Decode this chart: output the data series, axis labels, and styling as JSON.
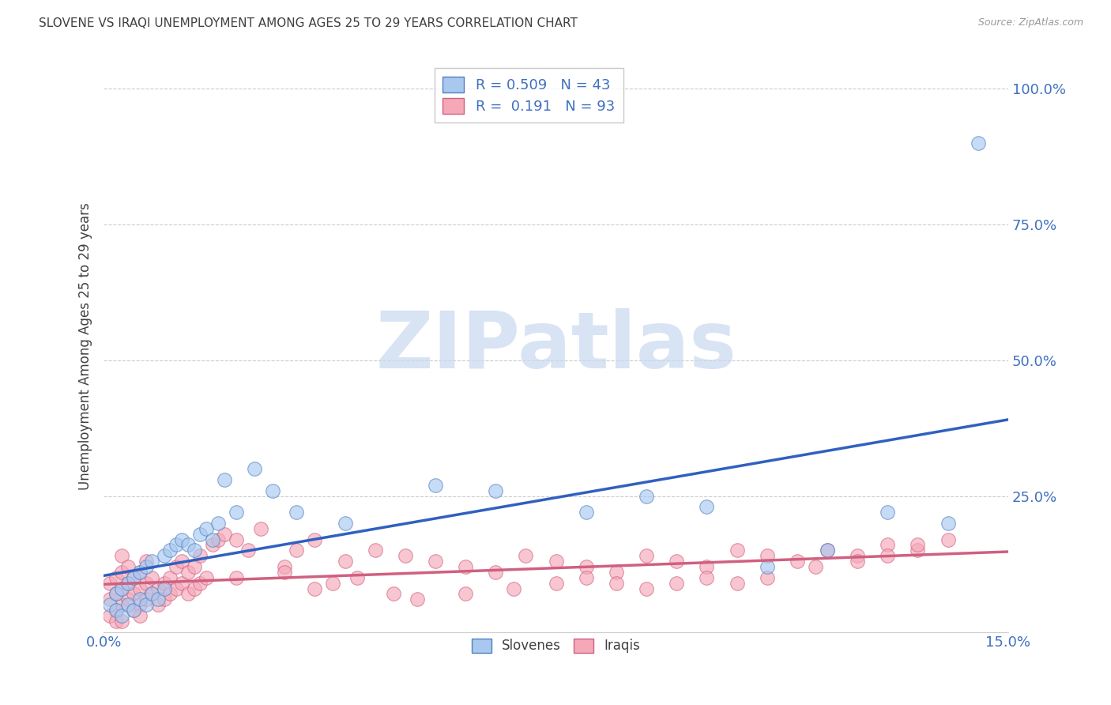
{
  "title": "SLOVENE VS IRAQI UNEMPLOYMENT AMONG AGES 25 TO 29 YEARS CORRELATION CHART",
  "source": "Source: ZipAtlas.com",
  "ylabel": "Unemployment Among Ages 25 to 29 years",
  "xlim": [
    0.0,
    0.15
  ],
  "ylim": [
    0.0,
    1.05
  ],
  "xticks": [
    0.0,
    0.03,
    0.06,
    0.09,
    0.12,
    0.15
  ],
  "xticklabels": [
    "0.0%",
    "",
    "",
    "",
    "",
    "15.0%"
  ],
  "yticks": [
    0.0,
    0.25,
    0.5,
    0.75,
    1.0
  ],
  "yticklabels": [
    "",
    "25.0%",
    "50.0%",
    "75.0%",
    "100.0%"
  ],
  "slovene_color": "#A8C8F0",
  "iraqi_color": "#F5A8B8",
  "slovene_edge_color": "#5080C0",
  "iraqi_edge_color": "#D06080",
  "slovene_line_color": "#3060C0",
  "iraqi_line_color": "#D06080",
  "watermark_text": "ZIPatlas",
  "watermark_color": "#C8D8F0",
  "watermark_color2": "#C0C0C0",
  "background_color": "#ffffff",
  "grid_color": "#cccccc",
  "title_color": "#404040",
  "axis_label_color": "#404040",
  "tick_color_blue": "#4070C0",
  "tick_color_dark": "#404040",
  "slovene_scatter_x": [
    0.001,
    0.002,
    0.002,
    0.003,
    0.003,
    0.004,
    0.004,
    0.005,
    0.005,
    0.006,
    0.006,
    0.007,
    0.007,
    0.008,
    0.008,
    0.009,
    0.01,
    0.01,
    0.011,
    0.012,
    0.013,
    0.014,
    0.015,
    0.016,
    0.017,
    0.018,
    0.019,
    0.02,
    0.022,
    0.025,
    0.028,
    0.032,
    0.04,
    0.055,
    0.065,
    0.08,
    0.09,
    0.1,
    0.11,
    0.12,
    0.13,
    0.14,
    0.145
  ],
  "slovene_scatter_y": [
    0.05,
    0.04,
    0.07,
    0.03,
    0.08,
    0.05,
    0.09,
    0.04,
    0.1,
    0.06,
    0.11,
    0.05,
    0.12,
    0.07,
    0.13,
    0.06,
    0.08,
    0.14,
    0.15,
    0.16,
    0.17,
    0.16,
    0.15,
    0.18,
    0.19,
    0.17,
    0.2,
    0.28,
    0.22,
    0.3,
    0.26,
    0.22,
    0.2,
    0.27,
    0.26,
    0.22,
    0.25,
    0.23,
    0.12,
    0.15,
    0.22,
    0.2,
    0.9
  ],
  "iraqi_scatter_x": [
    0.001,
    0.001,
    0.001,
    0.002,
    0.002,
    0.002,
    0.002,
    0.003,
    0.003,
    0.003,
    0.003,
    0.004,
    0.004,
    0.004,
    0.005,
    0.005,
    0.005,
    0.006,
    0.006,
    0.006,
    0.007,
    0.007,
    0.007,
    0.008,
    0.008,
    0.009,
    0.009,
    0.01,
    0.01,
    0.011,
    0.011,
    0.012,
    0.012,
    0.013,
    0.013,
    0.014,
    0.014,
    0.015,
    0.015,
    0.016,
    0.016,
    0.017,
    0.018,
    0.019,
    0.02,
    0.022,
    0.024,
    0.026,
    0.03,
    0.032,
    0.035,
    0.04,
    0.045,
    0.05,
    0.055,
    0.06,
    0.065,
    0.07,
    0.075,
    0.08,
    0.085,
    0.09,
    0.095,
    0.1,
    0.105,
    0.11,
    0.115,
    0.12,
    0.125,
    0.13,
    0.135,
    0.14,
    0.022,
    0.03,
    0.035,
    0.038,
    0.042,
    0.048,
    0.052,
    0.06,
    0.068,
    0.075,
    0.08,
    0.085,
    0.09,
    0.095,
    0.1,
    0.105,
    0.11,
    0.118,
    0.125,
    0.13,
    0.135,
    0.003,
    0.006
  ],
  "iraqi_scatter_y": [
    0.03,
    0.06,
    0.09,
    0.04,
    0.07,
    0.1,
    0.02,
    0.05,
    0.08,
    0.11,
    0.14,
    0.06,
    0.09,
    0.12,
    0.04,
    0.07,
    0.1,
    0.05,
    0.08,
    0.11,
    0.06,
    0.09,
    0.13,
    0.07,
    0.1,
    0.05,
    0.08,
    0.06,
    0.09,
    0.07,
    0.1,
    0.08,
    0.12,
    0.09,
    0.13,
    0.07,
    0.11,
    0.08,
    0.12,
    0.09,
    0.14,
    0.1,
    0.16,
    0.17,
    0.18,
    0.17,
    0.15,
    0.19,
    0.12,
    0.15,
    0.17,
    0.13,
    0.15,
    0.14,
    0.13,
    0.12,
    0.11,
    0.14,
    0.13,
    0.12,
    0.11,
    0.14,
    0.13,
    0.12,
    0.15,
    0.14,
    0.13,
    0.15,
    0.14,
    0.16,
    0.15,
    0.17,
    0.1,
    0.11,
    0.08,
    0.09,
    0.1,
    0.07,
    0.06,
    0.07,
    0.08,
    0.09,
    0.1,
    0.09,
    0.08,
    0.09,
    0.1,
    0.09,
    0.1,
    0.12,
    0.13,
    0.14,
    0.16,
    0.02,
    0.03
  ]
}
